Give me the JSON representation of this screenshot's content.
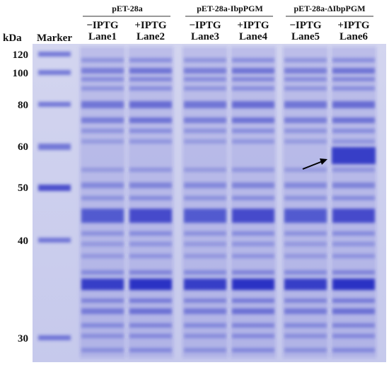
{
  "header": {
    "unit": "kDa",
    "marker": "Marker"
  },
  "groups": [
    {
      "title": "pET-28a",
      "lanes": [
        {
          "treatment": "−IPTG",
          "lane": "Lane1"
        },
        {
          "treatment": "+IPTG",
          "lane": "Lane2"
        }
      ]
    },
    {
      "title": "pET-28a-IbpPGM",
      "lanes": [
        {
          "treatment": "−IPTG",
          "lane": "Lane3"
        },
        {
          "treatment": "+IPTG",
          "lane": "Lane4"
        }
      ]
    },
    {
      "title": "pET-28a-ΔIbpPGM",
      "lanes": [
        {
          "treatment": "−IPTG",
          "lane": "Lane5"
        },
        {
          "treatment": "+IPTG",
          "lane": "Lane6"
        }
      ]
    }
  ],
  "markers": [
    "120",
    "100",
    "80",
    "60",
    "50",
    "40",
    "30"
  ]
}
